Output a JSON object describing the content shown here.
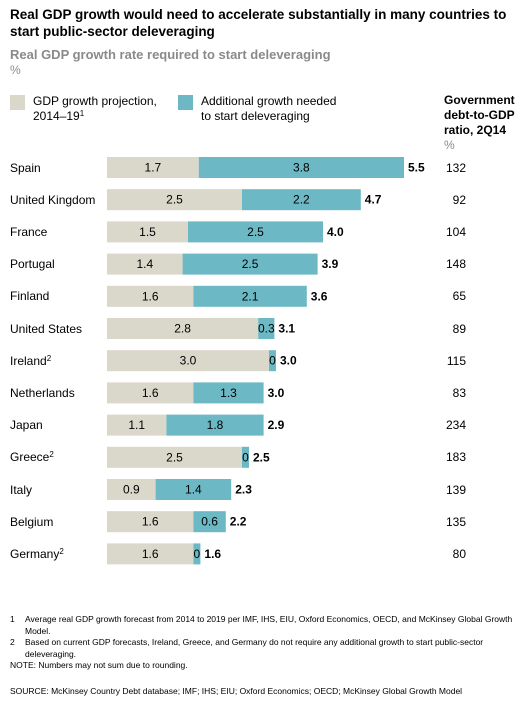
{
  "title": "Real GDP growth would need to accelerate substantially in many countries to start public-sector deleveraging",
  "subtitle": "Real GDP growth rate required to start deleveraging",
  "unit": "%",
  "legend": {
    "projection_label": "GDP growth projection,",
    "projection_years": "2014–19",
    "projection_sup": "1",
    "additional_label_line1": "Additional growth needed",
    "additional_label_line2": "to start deleveraging"
  },
  "gov_header": {
    "line1": "Government",
    "line2": "debt-to-GDP",
    "line3": "ratio, 2Q14",
    "unit": "%"
  },
  "colors": {
    "projection": "#dad7cb",
    "additional": "#6cb8c5"
  },
  "chart_data": {
    "type": "bar",
    "stacked": true,
    "orientation": "horizontal",
    "categories": [
      "Spain",
      "United Kingdom",
      "France",
      "Portugal",
      "Finland",
      "United States",
      "Ireland",
      "Netherlands",
      "Japan",
      "Greece",
      "Italy",
      "Belgium",
      "Germany"
    ],
    "category_sup": [
      "",
      "",
      "",
      "",
      "",
      "",
      "2",
      "",
      "",
      "2",
      "",
      "",
      "2"
    ],
    "series": [
      {
        "name": "GDP growth projection, 2014–19",
        "values": [
          1.7,
          2.5,
          1.5,
          1.4,
          1.6,
          2.8,
          3.0,
          1.6,
          1.1,
          2.5,
          0.9,
          1.6,
          1.6
        ]
      },
      {
        "name": "Additional growth needed to start deleveraging",
        "values": [
          3.8,
          2.2,
          2.5,
          2.5,
          2.1,
          0.3,
          0,
          1.3,
          1.8,
          0,
          1.4,
          0.6,
          0
        ]
      }
    ],
    "totals": [
      5.5,
      4.7,
      4.0,
      3.9,
      3.6,
      3.1,
      3.0,
      3.0,
      2.9,
      2.5,
      2.3,
      2.2,
      1.6
    ],
    "gov_debt_to_gdp": [
      132,
      92,
      104,
      148,
      65,
      89,
      115,
      83,
      234,
      183,
      139,
      135,
      80
    ],
    "xlim": [
      0,
      5.5
    ]
  },
  "footnotes": [
    {
      "num": "1",
      "text": "Average real GDP growth forecast from 2014 to 2019 per IMF, IHS, EIU, Oxford Economics, OECD, and McKinsey Global Growth Model."
    },
    {
      "num": "2",
      "text": "Based on current GDP forecasts, Ireland, Greece, and Germany do not require any additional growth to start public-sector deleveraging."
    }
  ],
  "note": "NOTE: Numbers may not sum due to rounding.",
  "source": "SOURCE:  McKinsey Country Debt database; IMF; IHS; EIU; Oxford Economics; OECD; McKinsey Global Growth Model"
}
